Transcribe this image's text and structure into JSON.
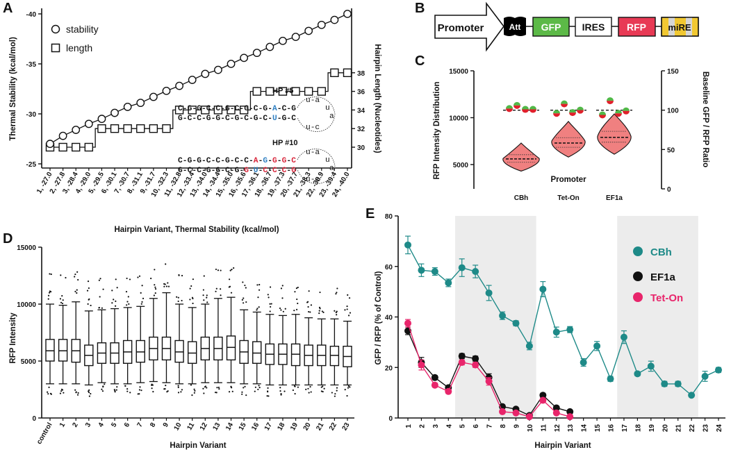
{
  "panelA": {
    "letter": "A",
    "ylabel_left": "Thermal Stability (kcal/mol)",
    "ylabel_right": "Hairpin Length (Nucleotides)",
    "xlabel": "Hairpin Variant, Thermal Stability (kcal/mol)",
    "legend": [
      "stability",
      "length"
    ],
    "yleft_ticks": [
      "-25",
      "-30",
      "-35",
      "-40"
    ],
    "yright_ticks": [
      "30",
      "32",
      "34",
      "36",
      "38"
    ],
    "categories": [
      "1, -27.0",
      "2, -27.8",
      "3, -28.4",
      "4, -29.0",
      "5, -29.5",
      "6, -30.1",
      "7, -30.7",
      "8, -31.1",
      "9, -31.7",
      "10, -32.3",
      "11, -32.8",
      "12, -33.4",
      "13, -34.0",
      "14, -34.4",
      "15, -35.0",
      "16, -35.6",
      "17, -36.1",
      "18, -36.7",
      "19, -37.3",
      "20, -37.7",
      "21, -38.3",
      "22, -38.9",
      "23, -39.4",
      "24, -40.0"
    ],
    "stability": [
      -27.0,
      -27.8,
      -28.4,
      -29.0,
      -29.5,
      -30.1,
      -30.7,
      -31.1,
      -31.7,
      -32.3,
      -32.8,
      -33.4,
      -34.0,
      -34.4,
      -35.0,
      -35.6,
      -36.1,
      -36.7,
      -37.3,
      -37.7,
      -38.3,
      -38.9,
      -39.4,
      -40.0
    ],
    "length": [
      30,
      30,
      30,
      30,
      32,
      32,
      32,
      32,
      32,
      32,
      34,
      34,
      34,
      34,
      34,
      34,
      36,
      36,
      36,
      36,
      36,
      36,
      38,
      38
    ],
    "hp5": {
      "title": "HP #5",
      "top": [
        "C",
        "-",
        "G",
        "-",
        "G",
        "-",
        "C",
        "-",
        "C",
        "-",
        "G",
        "-",
        "C",
        "-",
        "G",
        "-",
        "C",
        "-",
        "G",
        "-",
        "A",
        "-",
        "C",
        "-",
        "G"
      ],
      "bottom": [
        "G",
        "-",
        "C",
        "-",
        "C",
        "-",
        "G",
        "-",
        "G",
        "-",
        "C",
        "-",
        "G",
        "-",
        "C",
        "-",
        "G",
        "-",
        "C",
        "-",
        "U",
        "-",
        "G",
        "-",
        "C"
      ],
      "loop_top": "u-a",
      "loop_mid1": "u",
      "loop_mid2": "a",
      "loop_bottom": "u-c"
    },
    "hp10": {
      "title": "HP #10",
      "top": [
        "C",
        "-",
        "G",
        "-",
        "G",
        "-",
        "C",
        "-",
        "C",
        "-",
        "G",
        "-",
        "C",
        "-",
        "C",
        "-",
        "A",
        "-",
        "G",
        "-",
        "G",
        "-",
        "G",
        "-",
        "C"
      ],
      "bottom": [
        "G",
        "-",
        "C",
        "-",
        "C",
        "-",
        "G",
        "-",
        "G",
        "-",
        "C",
        "-",
        "G",
        "-",
        "G",
        "-",
        "U",
        "-",
        "C",
        "-",
        "C",
        "-",
        "C",
        "-",
        "G"
      ],
      "loop_top": "u-a",
      "loop_mid1": "u",
      "loop_mid2": "a",
      "loop_bottom": "u-c"
    },
    "colors": {
      "blue": "#2f7fc1",
      "red": "#d8263b",
      "black": "#111111"
    }
  },
  "panelB": {
    "letter": "B",
    "blocks": [
      "Promoter",
      "Att",
      "GFP",
      "IRES",
      "RFP",
      "miRE"
    ],
    "colors": {
      "gfp": "#5cb947",
      "rfp": "#e83a55",
      "mire": "#f1c832",
      "att": "#000000"
    }
  },
  "panelC": {
    "letter": "C",
    "ylabel_left": "RFP Intensity Distribution",
    "ylabel_right": "Baseline GFP / RFP Ratio",
    "xlabel": "Promoter",
    "categories": [
      "CBh",
      "Tet-On",
      "EF1a"
    ],
    "yleft_ticks": [
      "5000",
      "10000",
      "15000"
    ],
    "yright_ticks": [
      "0",
      "50",
      "100",
      "150"
    ],
    "violin_medians": [
      5600,
      7300,
      7900
    ],
    "ratio_points": [
      [
        102,
        106,
        101,
        101
      ],
      [
        96,
        108,
        97,
        100
      ],
      [
        94,
        112,
        96,
        99
      ]
    ],
    "colors": {
      "violin": "#f08080",
      "green": "#52b848",
      "red": "#e0202b"
    }
  },
  "panelD": {
    "letter": "D",
    "ylabel": "RFP Intensity",
    "xlabel": "Hairpin Variant",
    "ylim": [
      0,
      15000
    ],
    "yticks": [
      "0",
      "5000",
      "10000",
      "15000"
    ],
    "categories": [
      "control",
      "1",
      "2",
      "3",
      "4",
      "5",
      "6",
      "7",
      "8",
      "9",
      "10",
      "11",
      "12",
      "13",
      "14",
      "15",
      "16",
      "17",
      "18",
      "19",
      "20",
      "21",
      "22",
      "23"
    ],
    "box": {
      "q1": [
        5000,
        5000,
        4900,
        4600,
        4800,
        4800,
        4800,
        4900,
        5100,
        5100,
        4900,
        4800,
        5100,
        5100,
        5100,
        4800,
        4800,
        4700,
        4700,
        4600,
        4600,
        4600,
        4600,
        4500,
        4600
      ],
      "median": [
        5900,
        5900,
        5900,
        5500,
        5700,
        5700,
        5800,
        5800,
        6100,
        6100,
        5800,
        5700,
        6100,
        6100,
        6200,
        5800,
        5700,
        5600,
        5600,
        5600,
        5500,
        5500,
        5500,
        5400,
        5500
      ],
      "q3": [
        6900,
        6900,
        6900,
        6400,
        6600,
        6600,
        6800,
        6800,
        7100,
        7100,
        6800,
        6700,
        7100,
        7100,
        7200,
        6800,
        6700,
        6500,
        6500,
        6500,
        6400,
        6400,
        6300,
        6300,
        6300
      ],
      "lo": [
        3000,
        3000,
        3000,
        2900,
        3100,
        3000,
        3000,
        3100,
        3200,
        3100,
        3000,
        3000,
        3100,
        3100,
        3100,
        3000,
        3000,
        2900,
        2900,
        2900,
        2900,
        2900,
        2900,
        2900,
        2900
      ],
      "hi": [
        10000,
        9900,
        10200,
        9400,
        9500,
        9600,
        9700,
        9800,
        10500,
        11000,
        10000,
        9700,
        10000,
        10500,
        10600,
        9500,
        9300,
        9100,
        9000,
        9100,
        8800,
        8700,
        8700,
        8500,
        8600
      ]
    }
  },
  "panelE": {
    "letter": "E",
    "ylabel": "GFP / RFP (% of Control)",
    "xlabel": "Hairpin Variant",
    "ylim": [
      0,
      80
    ],
    "yticks": [
      "0",
      "20",
      "40",
      "60",
      "80"
    ],
    "categories": [
      "1",
      "2",
      "3",
      "4",
      "5",
      "6",
      "7",
      "8",
      "9",
      "10",
      "11",
      "12",
      "13",
      "14",
      "15",
      "16",
      "17",
      "18",
      "19",
      "20",
      "21",
      "22",
      "23",
      "24"
    ],
    "shaded_ranges": [
      [
        5,
        10
      ],
      [
        17,
        22
      ]
    ],
    "series": [
      {
        "name": "CBh",
        "color": "#1e8a88",
        "values": [
          68.5,
          58.5,
          58,
          53.5,
          59.5,
          58,
          49.5,
          40.5,
          37.5,
          28.5,
          51,
          34,
          35,
          22,
          28.5,
          15.5,
          32,
          17.5,
          20.5,
          13.5,
          13.5,
          9,
          16.5,
          19
        ],
        "errors": [
          3.5,
          2.5,
          1.5,
          1.5,
          3.5,
          2.5,
          3,
          1.5,
          1,
          1.5,
          3,
          2,
          1.2,
          1.5,
          1.8,
          1,
          2.5,
          0.8,
          2,
          1,
          1,
          0.5,
          2,
          1
        ]
      },
      {
        "name": "EF1a",
        "color": "#111111",
        "values": [
          34.5,
          22,
          16,
          12,
          24.5,
          23.5,
          16,
          4.5,
          3.5,
          1,
          9,
          4,
          2.5
        ],
        "errors": [
          1.5,
          2,
          0.8,
          0.8,
          1,
          1,
          1.5,
          0.5,
          0.5,
          0.3,
          0.8,
          0.5,
          0.3
        ]
      },
      {
        "name": "Tet-On",
        "color": "#e8256b",
        "values": [
          37.5,
          21,
          13,
          10.5,
          22,
          21,
          14.5,
          2.5,
          2,
          0.5,
          7,
          2,
          0.5
        ],
        "errors": [
          1.5,
          2,
          0.8,
          0.8,
          1,
          1,
          1.5,
          0.5,
          0.5,
          0.3,
          0.8,
          0.5,
          0.3
        ]
      }
    ]
  }
}
